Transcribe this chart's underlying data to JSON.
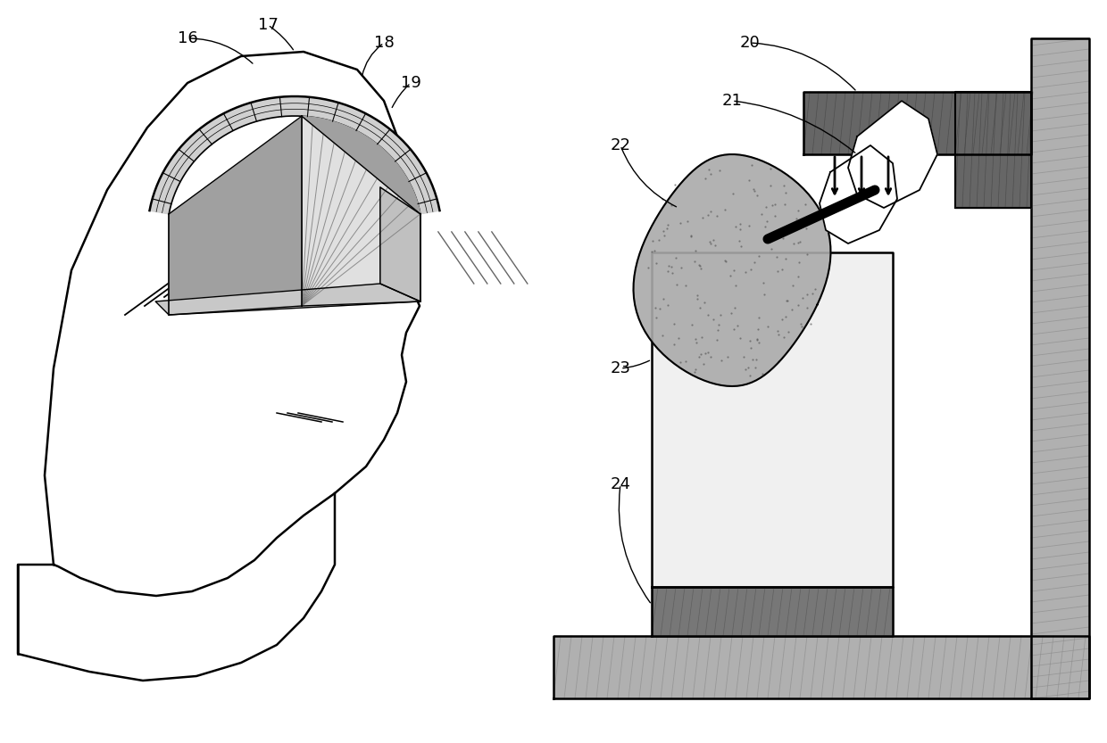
{
  "bg_color": "#ffffff",
  "skull_brick_color": "#d0d0d0",
  "brain_left_color": "#d8d8d8",
  "brain_right_color": "#909090",
  "bottom_face_color": "#c8c8c8",
  "side_face_color": "#b8b8b8",
  "frame_hatch_color": "#888888",
  "specimen_color": "#aaaaaa",
  "dark_gray": "#555555",
  "medium_gray": "#999999",
  "light_gray": "#dddddd",
  "labels": [
    "16",
    "17",
    "18",
    "19",
    "20",
    "21",
    "22",
    "23",
    "24"
  ],
  "label_fontsize": 13
}
